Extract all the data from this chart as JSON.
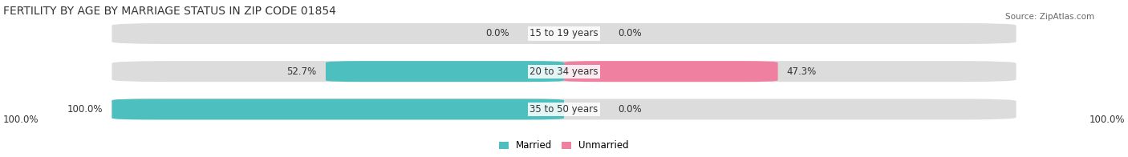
{
  "title": "FERTILITY BY AGE BY MARRIAGE STATUS IN ZIP CODE 01854",
  "source": "Source: ZipAtlas.com",
  "categories": [
    "15 to 19 years",
    "20 to 34 years",
    "35 to 50 years"
  ],
  "married_values": [
    0.0,
    52.7,
    100.0
  ],
  "unmarried_values": [
    0.0,
    47.3,
    0.0
  ],
  "married_color": "#4dbfbf",
  "unmarried_color": "#f080a0",
  "bar_bg_color": "#e8e8e8",
  "bar_height": 0.55,
  "title_fontsize": 10,
  "label_fontsize": 8.5,
  "category_fontsize": 8.5,
  "axis_label_left": "100.0%",
  "axis_label_right": "100.0%",
  "background_color": "#ffffff",
  "bar_background": "#dcdcdc"
}
